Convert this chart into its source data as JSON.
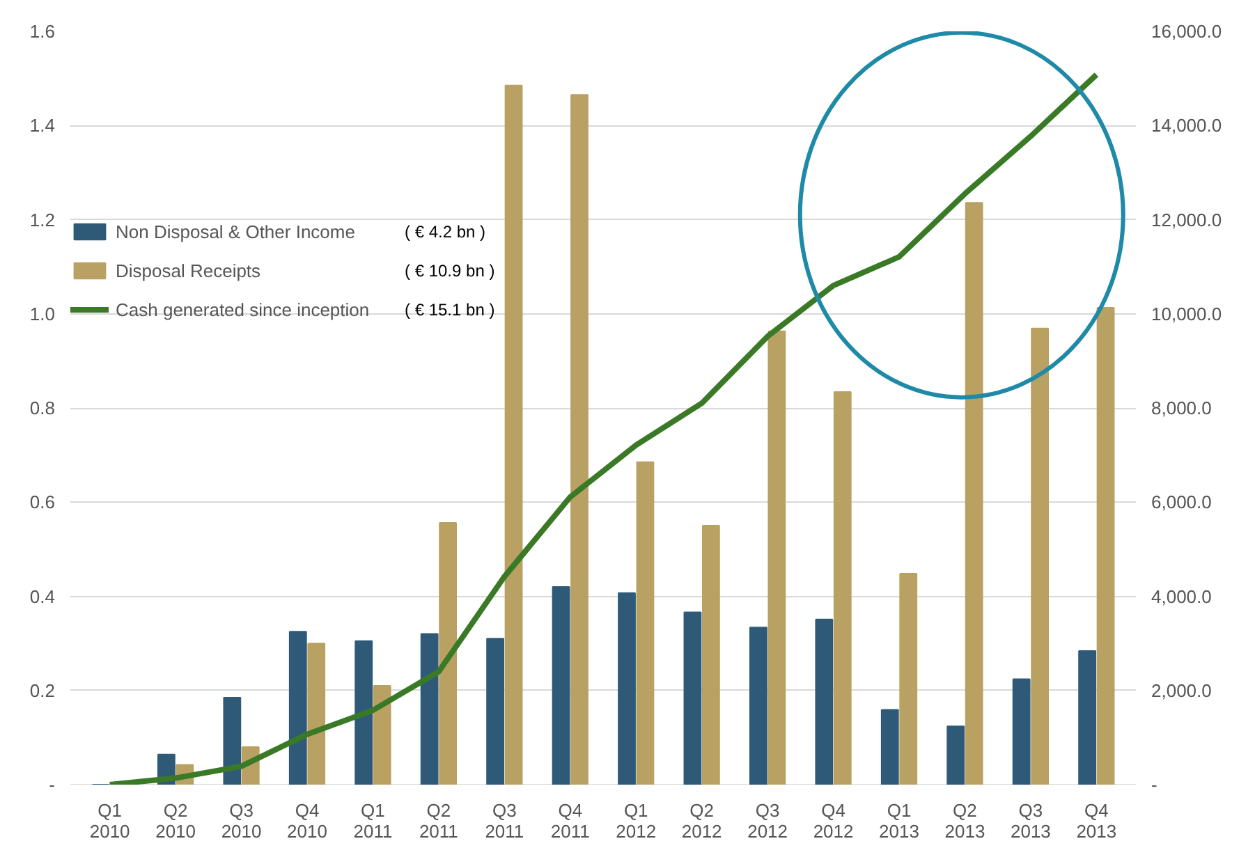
{
  "chart_data": {
    "type": "bar",
    "categories": [
      "Q1\n2010",
      "Q2\n2010",
      "Q3\n2010",
      "Q4\n2010",
      "Q1\n2011",
      "Q2\n2011",
      "Q3\n2011",
      "Q4\n2011",
      "Q1\n2012",
      "Q2\n2012",
      "Q3\n2012",
      "Q4\n2012",
      "Q1\n2013",
      "Q2\n2013",
      "Q3\n2013",
      "Q4\n2013"
    ],
    "series": [
      {
        "name": "Non Disposal & Other Income",
        "color": "#2e5a78",
        "values": [
          0,
          0.064,
          0.185,
          0.325,
          0.305,
          0.32,
          0.31,
          0.42,
          0.407,
          0.366,
          0.334,
          0.351,
          0.159,
          0.124,
          0.224,
          0.284
        ]
      },
      {
        "name": "Disposal Receipts",
        "color": "#b8a162",
        "values": [
          0,
          0.042,
          0.08,
          0.3,
          0.21,
          0.556,
          1.485,
          1.465,
          0.685,
          0.55,
          0.963,
          0.834,
          0.448,
          1.236,
          0.969,
          1.013
        ]
      },
      {
        "name": "Cash generated since inception",
        "type": "line",
        "axis": "y2",
        "color": "#3a7a26",
        "values": [
          0,
          140,
          390,
          1070,
          1580,
          2400,
          4420,
          6110,
          7210,
          8100,
          9520,
          10600,
          11210,
          12550,
          13770,
          15080
        ]
      }
    ],
    "annotations": [
      "( € 4.2 bn )",
      "( € 10.9 bn )",
      "( € 15.1 bn )"
    ],
    "ylim": [
      0,
      1.6
    ],
    "yticks": [
      {
        "value": 0,
        "label": "-"
      },
      0.2,
      0.4,
      0.6,
      0.8,
      {
        "value": 1.0,
        "label": "1.0"
      },
      1.2,
      1.4,
      1.6
    ],
    "y2lim": [
      0,
      16000
    ],
    "y2ticks": [
      {
        "value": 0,
        "label": "-"
      },
      {
        "value": 2000,
        "label": "2,000.0"
      },
      {
        "value": 4000,
        "label": "4,000.0"
      },
      {
        "value": 6000,
        "label": "6,000.0"
      },
      {
        "value": 8000,
        "label": "8,000.0"
      },
      {
        "value": 10000,
        "label": "10,000.0"
      },
      {
        "value": 12000,
        "label": "12,000.0"
      },
      {
        "value": 14000,
        "label": "14,000.0"
      },
      {
        "value": 16000,
        "label": "16,000.0"
      }
    ],
    "grid": "y",
    "legend": "left",
    "line_style": "solid",
    "marker": "none"
  }
}
